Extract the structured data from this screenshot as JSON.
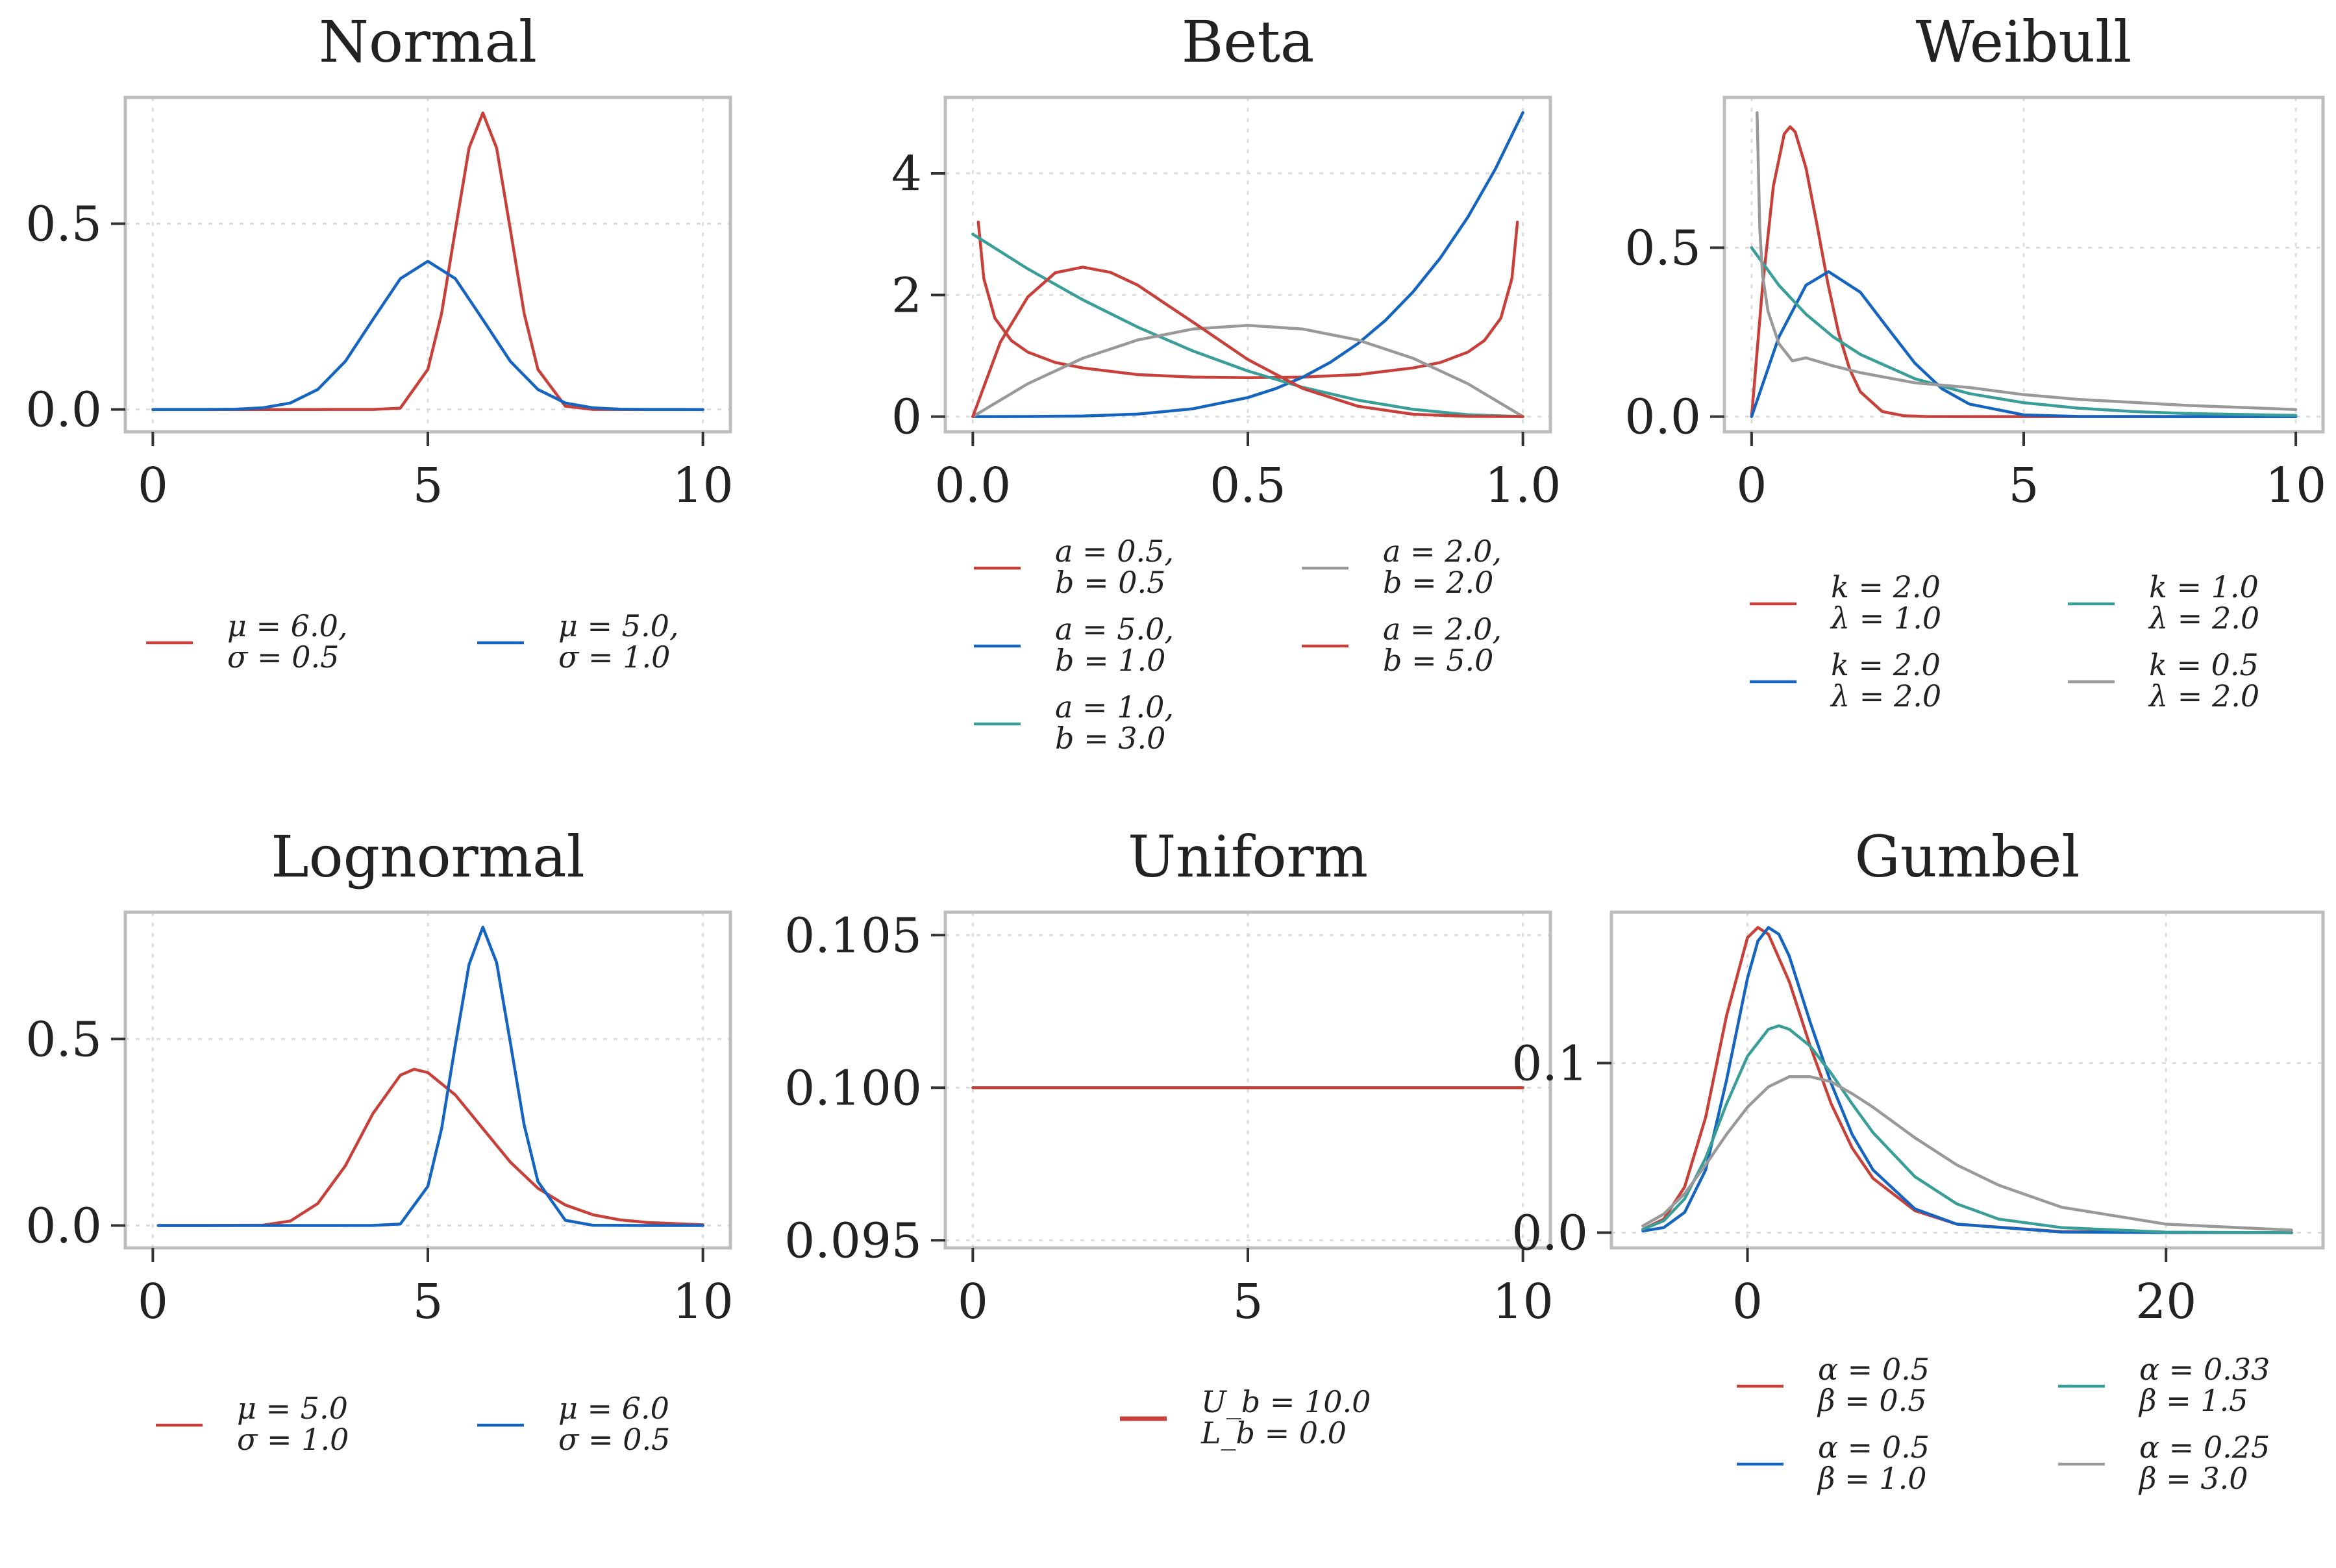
{
  "colors": {
    "red": "#c8403a",
    "blue": "#1565c0",
    "teal": "#3a9e98",
    "gray": "#999999"
  },
  "chart_data": [
    {
      "type": "line",
      "title": "Normal",
      "xlim": [
        -0.5,
        10.5
      ],
      "ylim": [
        -0.06,
        0.84
      ],
      "xticks": [
        {
          "value": 0,
          "label": "0"
        },
        {
          "value": 5,
          "label": "5"
        },
        {
          "value": 10,
          "label": "10"
        }
      ],
      "yticks": [
        {
          "value": 0,
          "label": "0.0"
        },
        {
          "value": 0.5,
          "label": "0.5"
        }
      ],
      "grid": true,
      "legend_columns": 2,
      "series": [
        {
          "name": [
            "μ = 6.0,",
            "σ = 0.5"
          ],
          "color": "red",
          "x": [
            0,
            1,
            2,
            3,
            4,
            4.5,
            5,
            5.25,
            5.5,
            5.75,
            6,
            6.25,
            6.5,
            6.75,
            7,
            7.5,
            8,
            9,
            10
          ],
          "y": [
            0,
            0,
            0,
            0,
            0.0001,
            0.0036,
            0.108,
            0.259,
            0.484,
            0.704,
            0.798,
            0.704,
            0.484,
            0.259,
            0.108,
            0.0089,
            0.0001,
            0,
            0
          ]
        },
        {
          "name": [
            "μ = 5.0,",
            "σ = 1.0"
          ],
          "color": "blue",
          "x": [
            0,
            1,
            1.5,
            2,
            2.5,
            3,
            3.5,
            4,
            4.5,
            5,
            5.5,
            6,
            6.5,
            7,
            7.5,
            8,
            8.5,
            9,
            10
          ],
          "y": [
            0,
            0.0001,
            0.0009,
            0.0044,
            0.0175,
            0.054,
            0.1295,
            0.242,
            0.3521,
            0.3989,
            0.3521,
            0.242,
            0.1295,
            0.054,
            0.0175,
            0.0044,
            0.0009,
            0.0001,
            0
          ]
        }
      ]
    },
    {
      "type": "line",
      "title": "Beta",
      "xlim": [
        -0.05,
        1.05
      ],
      "ylim": [
        -0.25,
        5.25
      ],
      "xticks": [
        {
          "value": 0,
          "label": "0.0"
        },
        {
          "value": 0.5,
          "label": "0.5"
        },
        {
          "value": 1,
          "label": "1.0"
        }
      ],
      "yticks": [
        {
          "value": 0,
          "label": "0"
        },
        {
          "value": 2,
          "label": "2"
        },
        {
          "value": 4,
          "label": "4"
        }
      ],
      "grid": true,
      "legend_columns": 2,
      "series": [
        {
          "name": [
            "a = 0.5,",
            "b = 0.5"
          ],
          "color": "red",
          "x": [
            0.01,
            0.02,
            0.04,
            0.07,
            0.1,
            0.15,
            0.2,
            0.3,
            0.4,
            0.5,
            0.6,
            0.7,
            0.8,
            0.85,
            0.9,
            0.93,
            0.96,
            0.98,
            0.99
          ],
          "y": [
            3.2,
            2.27,
            1.62,
            1.25,
            1.06,
            0.89,
            0.8,
            0.69,
            0.65,
            0.64,
            0.65,
            0.69,
            0.8,
            0.89,
            1.06,
            1.25,
            1.62,
            2.27,
            3.2
          ]
        },
        {
          "name": [
            "a = 5.0,",
            "b = 1.0"
          ],
          "color": "blue",
          "x": [
            0,
            0.1,
            0.2,
            0.3,
            0.4,
            0.5,
            0.55,
            0.6,
            0.65,
            0.7,
            0.75,
            0.8,
            0.85,
            0.9,
            0.95,
            1.0
          ],
          "y": [
            0,
            0.0005,
            0.008,
            0.041,
            0.128,
            0.313,
            0.458,
            0.648,
            0.893,
            1.2,
            1.582,
            2.048,
            2.61,
            3.281,
            4.073,
            5.0
          ]
        },
        {
          "name": [
            "a = 1.0,",
            "b = 3.0"
          ],
          "color": "teal",
          "x": [
            0,
            0.1,
            0.2,
            0.3,
            0.4,
            0.5,
            0.6,
            0.7,
            0.8,
            0.9,
            1.0
          ],
          "y": [
            3.0,
            2.43,
            1.92,
            1.47,
            1.08,
            0.75,
            0.48,
            0.27,
            0.12,
            0.03,
            0
          ]
        },
        {
          "name": [
            "a = 2.0,",
            "b = 2.0"
          ],
          "color": "gray",
          "x": [
            0,
            0.1,
            0.2,
            0.3,
            0.4,
            0.5,
            0.6,
            0.7,
            0.8,
            0.9,
            1.0
          ],
          "y": [
            0,
            0.54,
            0.96,
            1.26,
            1.44,
            1.5,
            1.44,
            1.26,
            0.96,
            0.54,
            0
          ]
        },
        {
          "name": [
            "a = 2.0,",
            "b = 5.0"
          ],
          "color": "red",
          "x": [
            0,
            0.05,
            0.1,
            0.15,
            0.2,
            0.25,
            0.3,
            0.35,
            0.4,
            0.5,
            0.6,
            0.7,
            0.8,
            0.9,
            1.0
          ],
          "y": [
            0,
            1.222,
            1.968,
            2.367,
            2.458,
            2.373,
            2.161,
            1.856,
            1.555,
            0.938,
            0.461,
            0.17,
            0.038,
            0.003,
            0
          ]
        }
      ]
    },
    {
      "type": "line",
      "title": "Weibull",
      "xlim": [
        -0.5,
        10.5
      ],
      "ylim": [
        -0.045,
        0.945
      ],
      "xticks": [
        {
          "value": 0,
          "label": "0"
        },
        {
          "value": 5,
          "label": "5"
        },
        {
          "value": 10,
          "label": "10"
        }
      ],
      "yticks": [
        {
          "value": 0,
          "label": "0.0"
        },
        {
          "value": 0.5,
          "label": "0.5"
        }
      ],
      "grid": true,
      "legend_columns": 2,
      "series": [
        {
          "name": [
            "k = 2.0",
            "λ = 1.0"
          ],
          "color": "red",
          "x": [
            0,
            0.2,
            0.4,
            0.6,
            0.707,
            0.8,
            1.0,
            1.2,
            1.4,
            1.6,
            1.8,
            2.0,
            2.4,
            2.8,
            3.2,
            4,
            6,
            8,
            10
          ],
          "y": [
            0,
            0.384,
            0.682,
            0.837,
            0.858,
            0.843,
            0.736,
            0.569,
            0.395,
            0.247,
            0.141,
            0.073,
            0.015,
            0.0022,
            0.0002,
            0,
            0,
            0,
            0
          ]
        },
        {
          "name": [
            "k = 2.0",
            "λ = 2.0"
          ],
          "color": "blue",
          "x": [
            0,
            0.5,
            1.0,
            1.414,
            2.0,
            2.5,
            3.0,
            3.5,
            4.0,
            5.0,
            6.0,
            8,
            10
          ],
          "y": [
            0,
            0.235,
            0.389,
            0.429,
            0.368,
            0.262,
            0.158,
            0.082,
            0.037,
            0.005,
            0.0004,
            0,
            0
          ]
        },
        {
          "name": [
            "k = 1.0",
            "λ = 2.0"
          ],
          "color": "teal",
          "x": [
            0,
            0.5,
            1,
            1.5,
            2,
            3,
            4,
            5,
            6,
            7,
            8,
            10
          ],
          "y": [
            0.5,
            0.389,
            0.303,
            0.236,
            0.184,
            0.112,
            0.068,
            0.041,
            0.025,
            0.015,
            0.009,
            0.0034
          ]
        },
        {
          "name": [
            "k = 0.5",
            "λ = 2.0"
          ],
          "color": "gray",
          "x": [
            0.1,
            0.15,
            0.2,
            0.3,
            0.5,
            0.75,
            1,
            1.5,
            2,
            3,
            4,
            5,
            6,
            8,
            10
          ],
          "y": [
            0.9,
            0.555,
            0.419,
            0.312,
            0.216,
            0.165,
            0.174,
            0.15,
            0.13,
            0.1,
            0.086,
            0.065,
            0.051,
            0.033,
            0.021
          ]
        }
      ]
    },
    {
      "type": "line",
      "title": "Lognormal",
      "xlim": [
        -0.5,
        10.5
      ],
      "ylim": [
        -0.06,
        0.84
      ],
      "xticks": [
        {
          "value": 0,
          "label": "0"
        },
        {
          "value": 5,
          "label": "5"
        },
        {
          "value": 10,
          "label": "10"
        }
      ],
      "yticks": [
        {
          "value": 0,
          "label": "0.0"
        },
        {
          "value": 0.5,
          "label": "0.5"
        }
      ],
      "grid": true,
      "legend_columns": 2,
      "series": [
        {
          "name": [
            "μ = 5.0",
            "σ = 1.0"
          ],
          "color": "red",
          "x": [
            0.1,
            1,
            2,
            2.5,
            3,
            3.5,
            4,
            4.5,
            4.75,
            5,
            5.5,
            6,
            6.5,
            7,
            7.5,
            8,
            8.5,
            9,
            10
          ],
          "y": [
            0,
            0,
            0.001,
            0.012,
            0.059,
            0.16,
            0.3,
            0.403,
            0.419,
            0.41,
            0.35,
            0.26,
            0.17,
            0.1,
            0.055,
            0.029,
            0.015,
            0.008,
            0.002
          ]
        },
        {
          "name": [
            "μ = 6.0",
            "σ = 0.5"
          ],
          "color": "blue",
          "x": [
            0.1,
            2,
            4,
            4.5,
            5,
            5.25,
            5.5,
            5.75,
            6,
            6.25,
            6.5,
            6.75,
            7,
            7.5,
            8,
            9,
            10
          ],
          "y": [
            0,
            0,
            0.0002,
            0.004,
            0.105,
            0.26,
            0.485,
            0.7,
            0.8,
            0.705,
            0.49,
            0.27,
            0.118,
            0.014,
            0.0007,
            0,
            0
          ]
        }
      ]
    },
    {
      "type": "line",
      "title": "Uniform",
      "xlim": [
        -0.5,
        10.5
      ],
      "ylim": [
        0.09475,
        0.10575
      ],
      "xticks": [
        {
          "value": 0,
          "label": "0"
        },
        {
          "value": 5,
          "label": "5"
        },
        {
          "value": 10,
          "label": "10"
        }
      ],
      "yticks": [
        {
          "value": 0.095,
          "label": "0.095"
        },
        {
          "value": 0.1,
          "label": "0.100"
        },
        {
          "value": 0.105,
          "label": "0.105"
        }
      ],
      "grid": true,
      "legend_columns": 1,
      "series": [
        {
          "name": [
            "U_b = 10.0",
            "L_b = 0.0"
          ],
          "color": "red",
          "x": [
            0,
            10
          ],
          "y": [
            0.1,
            0.1
          ]
        }
      ]
    },
    {
      "type": "line",
      "title": "Gumbel",
      "xlim": [
        -6.5,
        27.5
      ],
      "ylim": [
        -0.009,
        0.189
      ],
      "xticks": [
        {
          "value": 0,
          "label": "0"
        },
        {
          "value": 20,
          "label": "20"
        }
      ],
      "yticks": [
        {
          "value": 0,
          "label": "0.0"
        },
        {
          "value": 0.1,
          "label": "0.1"
        }
      ],
      "grid": true,
      "legend_columns": 2,
      "series": [
        {
          "name": [
            "α = 0.5",
            "β = 0.5"
          ],
          "color": "red",
          "x": [
            -5,
            -4,
            -3,
            -2,
            -1,
            0,
            0.5,
            1,
            2,
            3,
            4,
            5,
            6,
            8,
            10,
            15,
            20,
            26
          ],
          "y": [
            0.002,
            0.008,
            0.027,
            0.068,
            0.128,
            0.174,
            0.18,
            0.176,
            0.148,
            0.11,
            0.076,
            0.05,
            0.032,
            0.013,
            0.005,
            0.0006,
            0.0001,
            0
          ]
        },
        {
          "name": [
            "α = 0.5",
            "β = 1.0"
          ],
          "color": "blue",
          "x": [
            -5,
            -4,
            -3,
            -2,
            -1,
            0,
            0.5,
            1,
            1.5,
            2,
            3,
            4,
            5,
            6,
            8,
            10,
            15,
            20,
            26
          ],
          "y": [
            0.001,
            0.003,
            0.012,
            0.037,
            0.09,
            0.15,
            0.172,
            0.18,
            0.176,
            0.163,
            0.124,
            0.088,
            0.058,
            0.037,
            0.014,
            0.005,
            0.0004,
            0,
            0
          ]
        },
        {
          "name": [
            "α = 0.33",
            "β = 1.5"
          ],
          "color": "teal",
          "x": [
            -5,
            -4,
            -3,
            -2,
            -1,
            0,
            1,
            1.5,
            2,
            3,
            4,
            5,
            6,
            8,
            10,
            12,
            15,
            20,
            26
          ],
          "y": [
            0.002,
            0.007,
            0.02,
            0.044,
            0.076,
            0.104,
            0.12,
            0.122,
            0.12,
            0.11,
            0.094,
            0.076,
            0.059,
            0.033,
            0.017,
            0.008,
            0.003,
            0.0003,
            0
          ]
        },
        {
          "name": [
            "α = 0.25",
            "β = 3.0"
          ],
          "color": "gray",
          "x": [
            -5,
            -4,
            -3,
            -2,
            -1,
            0,
            1,
            2,
            3,
            4,
            5,
            6,
            8,
            10,
            12,
            15,
            20,
            26
          ],
          "y": [
            0.004,
            0.011,
            0.023,
            0.04,
            0.058,
            0.074,
            0.086,
            0.092,
            0.092,
            0.089,
            0.082,
            0.074,
            0.056,
            0.04,
            0.028,
            0.015,
            0.005,
            0.0015
          ]
        }
      ]
    }
  ]
}
